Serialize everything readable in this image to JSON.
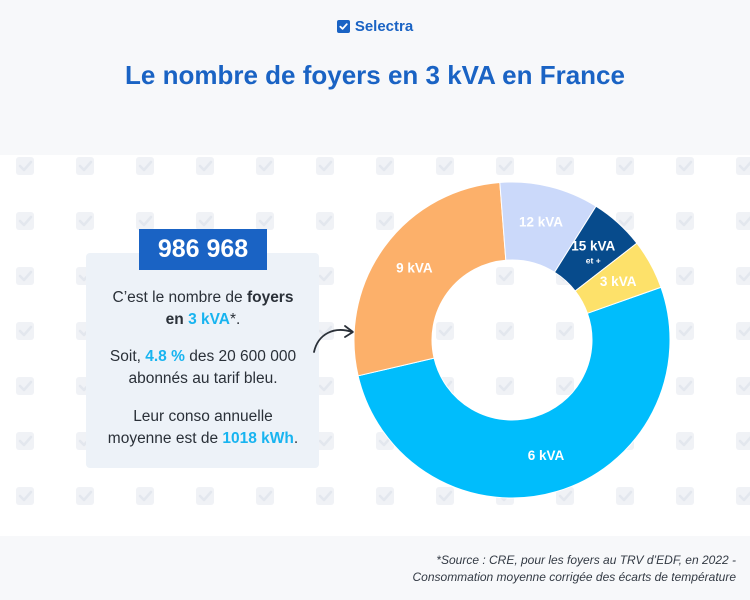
{
  "brand": {
    "name": "Selectra"
  },
  "title": "Le nombre de foyers en 3 kVA en France",
  "highlight": {
    "value": "986 968"
  },
  "info": {
    "line1": {
      "a": "C’est le nombre de ",
      "b": "foyers",
      "c": "en ",
      "d": "3 kVA",
      "e": "*."
    },
    "line2": {
      "a": "Soit, ",
      "b": "4.8 %",
      "c": " des 20 600 000",
      "d": "abonnés au tarif bleu."
    },
    "line3": {
      "a": "Leur conso annuelle",
      "b": "moyenne est de ",
      "c": "1018 kWh",
      "d": "."
    }
  },
  "footnote": {
    "line1": "*Source : CRE, pour les foyers au TRV d’EDF, en 2022 -",
    "line2": "Consommation moyenne corrigée des écarts de température"
  },
  "colors": {
    "brand": "#1a63c4",
    "accent": "#18b4f0"
  },
  "chart_data": {
    "type": "pie",
    "subtype": "donut",
    "categories": [
      "6 kVA",
      "9 kVA",
      "12 kVA",
      "15 kVA",
      "3 kVA"
    ],
    "values": [
      51,
      27,
      10,
      5.5,
      5
    ],
    "colors": [
      "#00bdfc",
      "#fcb06a",
      "#cbd9fa",
      "#074b8c",
      "#fde16a"
    ],
    "labels": [
      "6 kVA",
      "9 kVA",
      "12 kVA",
      "15 kVA",
      "3 kVA"
    ],
    "label_suffix": {
      "15 kVA": "et +"
    },
    "label_colors": [
      "#ffffff",
      "#ffffff",
      "#ffffff",
      "#ffffff",
      "#ffffff"
    ]
  }
}
